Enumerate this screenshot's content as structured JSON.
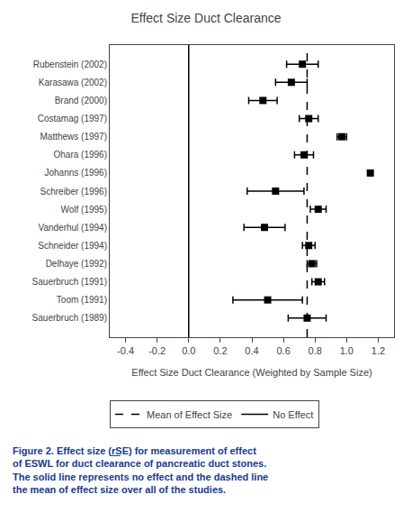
{
  "chart_data": {
    "type": "scatter",
    "title": "Effect Size Duct Clearance",
    "x_label": "Effect Size Duct Clearance (Weighted by Sample Size)",
    "categories": [
      "Rubenstein (2002)",
      "Karasawa (2002)",
      "Brand (2000)",
      "Costamag (1997)",
      "Matthews (1997)",
      "Ohara (1996)",
      "Johanns (1996)",
      "Schreiber (1996)",
      "Wolf (1995)",
      "Vanderhul (1994)",
      "Schneider (1994)",
      "Delhaye (1992)",
      "Sauerbruch (1991)",
      "Toom (1991)",
      "Sauerbruch (1989)"
    ],
    "values": [
      0.72,
      0.65,
      0.47,
      0.76,
      0.97,
      0.73,
      1.15,
      0.55,
      0.82,
      0.48,
      0.76,
      0.78,
      0.82,
      0.5,
      0.75
    ],
    "errors": [
      0.1,
      0.1,
      0.09,
      0.06,
      0.03,
      0.06,
      0.0,
      0.18,
      0.05,
      0.13,
      0.04,
      0.03,
      0.04,
      0.22,
      0.12
    ],
    "color": "black",
    "marker": "square",
    "xlim": [
      -0.5,
      1.3
    ],
    "xticks": [
      -0.4,
      -0.2,
      {
        "value": 0.0,
        "label": "0.0"
      },
      0.2,
      0.4,
      0.6,
      0.8,
      {
        "value": 1.0,
        "label": "1.0"
      },
      1.2
    ],
    "lines": [
      {
        "name": "Mean of Effect Size",
        "value": 0.75,
        "line_style": "dashed",
        "color": "black"
      },
      {
        "name": "No Effect",
        "value": 0.0,
        "line_style": "solid",
        "color": "black"
      }
    ],
    "grid": false,
    "legend": "bottom",
    "annotations": [
      {
        "text": "Figure 2. Effect size (r͟SE) for measurement of effect\nof ESWL for duct clearance of pancreatic duct stones.\nThe solid line represents no effect and the dashed line\nthe mean of effect size over all of the studies.",
        "color": "#1a3a8f"
      }
    ]
  }
}
